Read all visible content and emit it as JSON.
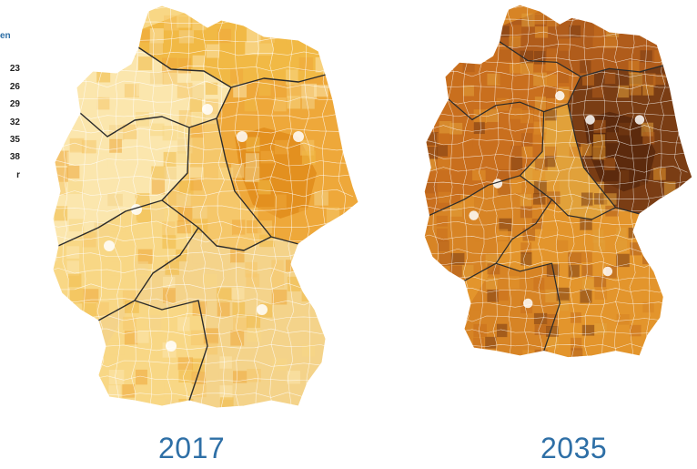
{
  "legend": {
    "title": "en",
    "items": [
      "23",
      "26",
      "29",
      "32",
      "35",
      "38",
      "r"
    ]
  },
  "maps": [
    {
      "year": "2017",
      "palette": {
        "base": "#f8d785",
        "west": "#fbe6ad",
        "mid": "#f5c76a",
        "east": "#eea83a",
        "east_dark": "#e3901f",
        "south": "#f4d38a",
        "north": "#f1b945"
      }
    },
    {
      "year": "2035",
      "palette": {
        "base": "#d78425",
        "west": "#c96f1e",
        "mid": "#e1a13a",
        "east": "#7a3d14",
        "east_dark": "#5c2a0d",
        "south": "#e3952c",
        "north": "#b05c1b"
      }
    }
  ],
  "colors": {
    "border": "#2b2b2b",
    "district_lines": "#ffffff",
    "year_text": "#2e6fa6",
    "legend_title": "#2e6fa6"
  }
}
